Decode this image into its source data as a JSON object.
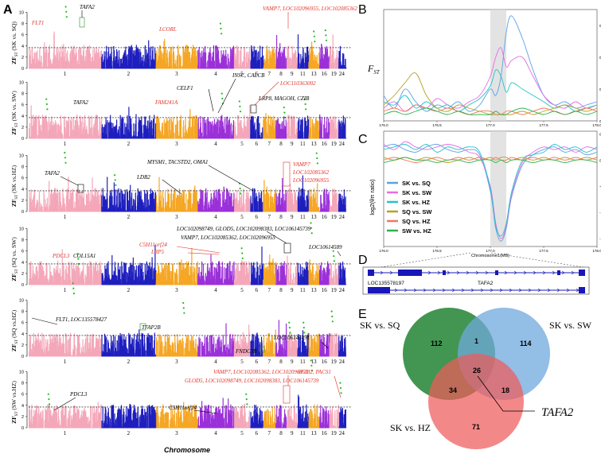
{
  "colors": {
    "chr_cycle": [
      "#f4a7b9",
      "#1f1fbf",
      "#f5a623",
      "#9b30d9"
    ],
    "highlight_green": "#22bb22",
    "label_red": "#e0332a",
    "threshold": "#000000",
    "green_circle": "#2e8b3e",
    "blue_circle": "#6fa8dc",
    "red_circle": "#ee5a5a",
    "gene_blue": "#1818b8"
  },
  "manhattan": {
    "panel_label": "A",
    "xlabel": "Chromosome",
    "yticks": [
      "0",
      "2",
      "4",
      "6",
      "8",
      "10"
    ],
    "chromosomes": [
      "1",
      "2",
      "3",
      "4",
      "5",
      "6",
      "7",
      "8",
      "9",
      "11",
      "13",
      "16",
      "19",
      "24"
    ],
    "panels": [
      {
        "ylabel": "ZF",
        "ysub": "ST",
        "ycomp": " (SK vs. SQ)",
        "labels": [
          {
            "text": "TAFA2",
            "color": "black"
          },
          {
            "text": "FLT1",
            "color": "red"
          },
          {
            "text": "LCORL",
            "color": "red"
          },
          {
            "text": "VAMP7, LOC102096955, LOC102085362",
            "color": "red"
          }
        ]
      },
      {
        "ylabel": "ZF",
        "ysub": "ST",
        "ycomp": " (SK vs. SW)",
        "labels": [
          {
            "text": "TAFA2",
            "color": "black"
          },
          {
            "text": "FAM241A",
            "color": "red"
          },
          {
            "text": "CELF1",
            "color": "black"
          },
          {
            "text": "INSC, CALCB",
            "color": "black"
          },
          {
            "text": "LOC110363002",
            "color": "red"
          },
          {
            "text": "LRP8, MAGOH, CZIB",
            "color": "black"
          }
        ]
      },
      {
        "ylabel": "ZF",
        "ysub": "ST",
        "ycomp": " (SK vs.HZ)",
        "labels": [
          {
            "text": "TAFA2",
            "color": "black"
          },
          {
            "text": "MYSM1, TACSTD2, OMA1",
            "color": "black"
          },
          {
            "text": "LDB2",
            "color": "black"
          },
          {
            "text": "VAMP7",
            "color": "red"
          },
          {
            "text": "LOC102085362",
            "color": "red"
          },
          {
            "text": "LOC102096955",
            "color": "red"
          }
        ]
      },
      {
        "ylabel": "ZF",
        "ysub": "ST",
        "ycomp": " (SQ vs. SW)",
        "labels": [
          {
            "text": "LOC102098749, GLOD5, LOC102098383, LOC106145739",
            "color": "black"
          },
          {
            "text": "VAMP7, LOC102085362, LOC102096955",
            "color": "black"
          },
          {
            "text": "PDCL3",
            "color": "red"
          },
          {
            "text": "COL15A1",
            "color": "black"
          },
          {
            "text": "C5H11orf24",
            "color": "red"
          },
          {
            "text": "LRP5",
            "color": "red"
          },
          {
            "text": "LOC10614589",
            "color": "black"
          }
        ]
      },
      {
        "ylabel": "ZF",
        "ysub": "ST",
        "ycomp": " (SQ vs.HZ)",
        "labels": [
          {
            "text": "FLT1, LOC135578427",
            "color": "black"
          },
          {
            "text": "TFAP2B",
            "color": "black"
          },
          {
            "text": "LOC106145891",
            "color": "black"
          },
          {
            "text": "FNDC3B",
            "color": "black"
          }
        ]
      },
      {
        "ylabel": "ZF",
        "ysub": "ST",
        "ycomp": " (SW vs.HZ)",
        "labels": [
          {
            "text": "VAMP7, LOC102085362, LOC102096955",
            "color": "red"
          },
          {
            "text": "GLOD5, LOC102098749, LOC102098383, LOC106145739",
            "color": "red"
          },
          {
            "text": "SF3B2, PACS1",
            "color": "red"
          },
          {
            "text": "PDCL3",
            "color": "black"
          },
          {
            "text": "C5H11orf24",
            "color": "black"
          }
        ]
      }
    ]
  },
  "chart_data": [
    {
      "type": "line",
      "panel_label": "B",
      "ylabel": "F",
      "ylabel_sub": "ST",
      "xlim": [
        176.0,
        178.0
      ],
      "ylim": [
        0,
        0.35
      ],
      "xticks": [
        "176.0",
        "176.5",
        "177.0",
        "177.5",
        "178.0"
      ],
      "yticks": [
        "0.0",
        "0.1",
        "0.2",
        "0.3"
      ],
      "highlight": [
        177.0,
        177.15
      ],
      "x": [
        176.0,
        176.1,
        176.2,
        176.3,
        176.4,
        176.5,
        176.6,
        176.7,
        176.8,
        176.9,
        177.0,
        177.05,
        177.1,
        177.15,
        177.2,
        177.3,
        177.4,
        177.5,
        177.6,
        177.7,
        177.8,
        177.9,
        178.0
      ],
      "series": [
        {
          "name": "SK vs. SQ",
          "color": "#5aa0e6",
          "values": [
            0.08,
            0.04,
            0.1,
            0.06,
            0.03,
            0.05,
            0.04,
            0.06,
            0.03,
            0.05,
            0.1,
            0.08,
            0.14,
            0.28,
            0.33,
            0.26,
            0.16,
            0.08,
            0.05,
            0.06,
            0.04,
            0.05,
            0.06
          ]
        },
        {
          "name": "SK vs. SW",
          "color": "#e86be6",
          "values": [
            0.04,
            0.06,
            0.03,
            0.05,
            0.04,
            0.07,
            0.05,
            0.04,
            0.06,
            0.08,
            0.14,
            0.2,
            0.23,
            0.17,
            0.19,
            0.2,
            0.14,
            0.08,
            0.05,
            0.04,
            0.06,
            0.04,
            0.05
          ]
        },
        {
          "name": "SK vs. HZ",
          "color": "#22c5c8",
          "values": [
            0.06,
            0.05,
            0.08,
            0.04,
            0.06,
            0.04,
            0.05,
            0.03,
            0.05,
            0.07,
            0.11,
            0.16,
            0.14,
            0.09,
            0.12,
            0.1,
            0.08,
            0.06,
            0.04,
            0.05,
            0.03,
            0.04,
            0.05
          ]
        },
        {
          "name": "SQ vs. SW",
          "color": "#b8a020",
          "values": [
            0.05,
            0.08,
            0.12,
            0.15,
            0.08,
            0.04,
            0.03,
            0.05,
            0.04,
            0.03,
            0.02,
            0.02,
            0.02,
            0.02,
            0.02,
            0.03,
            0.02,
            0.03,
            0.04,
            0.05,
            0.04,
            0.03,
            0.04
          ]
        },
        {
          "name": "SQ vs. HZ",
          "color": "#f07860",
          "values": [
            0.03,
            0.04,
            0.03,
            0.05,
            0.04,
            0.03,
            0.04,
            0.03,
            0.02,
            0.03,
            0.03,
            0.02,
            0.02,
            0.03,
            0.03,
            0.02,
            0.03,
            0.04,
            0.03,
            0.02,
            0.03,
            0.04,
            0.03
          ]
        },
        {
          "name": "SW vs. HZ",
          "color": "#2fb24a",
          "values": [
            0.02,
            0.03,
            0.02,
            0.03,
            0.04,
            0.03,
            0.02,
            0.03,
            0.02,
            0.02,
            0.02,
            0.03,
            0.02,
            0.02,
            0.03,
            0.04,
            0.03,
            0.02,
            0.03,
            0.02,
            0.03,
            0.02,
            0.03
          ]
        }
      ]
    },
    {
      "type": "line",
      "panel_label": "C",
      "ylabel": "log2(θπ ratio)",
      "xlabel": "Chromosome1(MB)",
      "xlim": [
        176.0,
        178.0
      ],
      "ylim": [
        -1.65,
        0.55
      ],
      "xticks": [
        "176.0",
        "176.5",
        "177.0",
        "177.5",
        "178.0"
      ],
      "yticks": [
        "0.5",
        "0.0",
        "-0.5",
        "-1.0",
        "-1.5"
      ],
      "highlight": [
        177.0,
        177.15
      ],
      "x": [
        176.0,
        176.1,
        176.2,
        176.3,
        176.4,
        176.5,
        176.6,
        176.7,
        176.8,
        176.9,
        177.0,
        177.05,
        177.1,
        177.15,
        177.2,
        177.3,
        177.4,
        177.5,
        177.6,
        177.7,
        177.8,
        177.9,
        178.0
      ],
      "series": [
        {
          "name": "SK vs. SQ",
          "color": "#5aa0e6",
          "values": [
            0.25,
            0.3,
            0.2,
            0.15,
            0.25,
            0.3,
            0.2,
            0.15,
            0.2,
            0.1,
            -0.6,
            -1.3,
            -1.55,
            -1.3,
            -0.7,
            -0.1,
            0.1,
            0.2,
            0.25,
            0.15,
            0.2,
            0.1,
            0.15
          ]
        },
        {
          "name": "SK vs. SW",
          "color": "#e86be6",
          "values": [
            0.3,
            0.2,
            0.35,
            0.25,
            0.2,
            0.25,
            0.3,
            0.25,
            0.15,
            0.05,
            -0.5,
            -1.2,
            -1.5,
            -1.25,
            -0.65,
            -0.05,
            0.15,
            0.25,
            0.2,
            0.25,
            0.15,
            0.25,
            0.2
          ]
        },
        {
          "name": "SK vs. HZ",
          "color": "#22c5c8",
          "values": [
            0.2,
            0.25,
            0.3,
            0.2,
            0.3,
            0.15,
            0.25,
            0.2,
            0.25,
            0.15,
            -0.55,
            -1.25,
            -1.45,
            -1.2,
            -0.6,
            0.0,
            0.1,
            0.15,
            0.3,
            0.2,
            0.25,
            0.15,
            0.25
          ]
        },
        {
          "name": "SQ vs. SW",
          "color": "#b8a020",
          "values": [
            0.05,
            0.0,
            0.05,
            0.0,
            0.05,
            0.0,
            -0.05,
            0.0,
            0.05,
            0.0,
            0.05,
            0.0,
            0.05,
            0.05,
            0.0,
            0.05,
            0.0,
            0.05,
            0.0,
            0.05,
            0.0,
            0.05,
            0.0
          ]
        },
        {
          "name": "SQ vs. HZ",
          "color": "#f07860",
          "values": [
            0.0,
            0.05,
            0.0,
            -0.05,
            0.0,
            0.05,
            0.0,
            0.05,
            0.0,
            0.05,
            0.0,
            0.05,
            0.0,
            0.0,
            0.05,
            0.0,
            0.05,
            0.0,
            0.05,
            0.0,
            0.05,
            0.0,
            0.05
          ]
        },
        {
          "name": "SW vs. HZ",
          "color": "#2fb24a",
          "values": [
            -0.05,
            0.0,
            0.05,
            0.0,
            0.0,
            -0.05,
            0.0,
            0.0,
            -0.05,
            0.0,
            0.0,
            -0.05,
            0.0,
            -0.05,
            0.0,
            0.0,
            -0.05,
            0.0,
            0.0,
            -0.05,
            0.0,
            0.0,
            -0.05
          ]
        }
      ]
    }
  ],
  "genemodel": {
    "panel_label": "D",
    "gene1": "LOC135578197",
    "gene2": "TAFA2"
  },
  "venn": {
    "panel_label": "E",
    "sets": [
      {
        "name": "SK vs. SQ",
        "only": "112"
      },
      {
        "name": "SK vs. SW",
        "only": "114"
      },
      {
        "name": "SK vs. HZ",
        "only": "71"
      }
    ],
    "sq_sw": "1",
    "sq_hz": "34",
    "sw_hz": "18",
    "all": "26",
    "callout": "TAFA2"
  }
}
